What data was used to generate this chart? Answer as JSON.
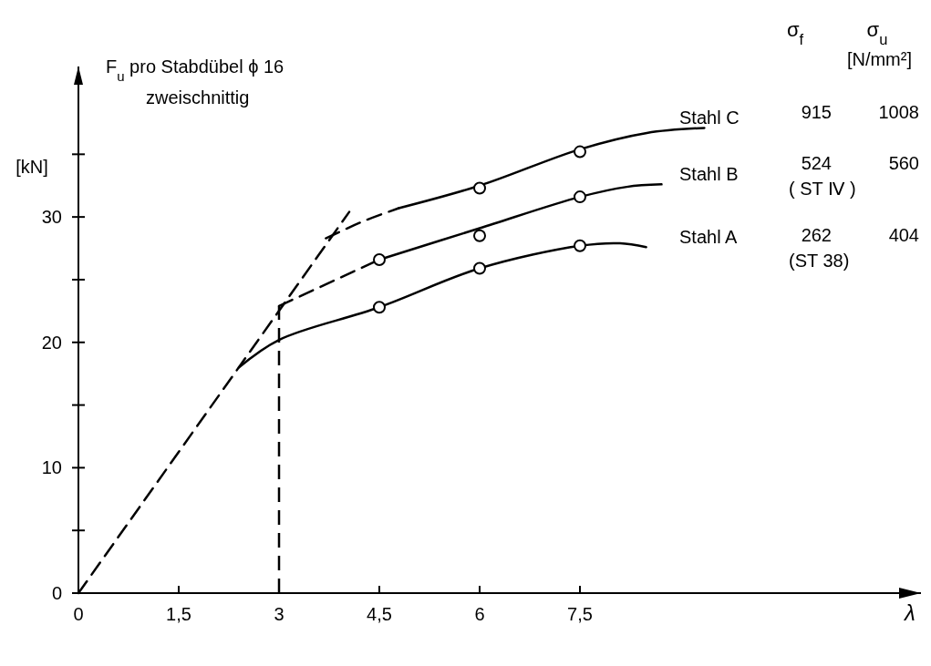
{
  "chart_data": {
    "type": "line",
    "title": "F$_{u}$ pro Stabdübel ϕ 16\nzweischnittig",
    "ylabel": "[kN]",
    "xlabel": "λ",
    "xlim": [
      0,
      12.6
    ],
    "ylim": [
      0,
      42
    ],
    "xticks": [
      0,
      {
        "value": 1.5,
        "label": "1,5"
      },
      3,
      {
        "value": 4.5,
        "label": "4,5"
      },
      6,
      {
        "value": 7.5,
        "label": "7,5"
      }
    ],
    "yticks": [
      0,
      {
        "value": 5,
        "label": null
      },
      10,
      {
        "value": 15,
        "label": null
      },
      20,
      {
        "value": 25,
        "label": null
      },
      30,
      {
        "value": 35,
        "label": null
      }
    ],
    "ref_lines": [
      {
        "axis": "x",
        "value": 3,
        "color": "#000000",
        "line_style": "dashed"
      }
    ],
    "annotations": [
      "σ$_{f}$",
      "σ$_{u}$",
      "[N/mm²]",
      "915",
      "1008",
      "524",
      "560",
      "( ST Ⅳ )",
      "262",
      "404",
      "(ST 38)"
    ],
    "series": [
      {
        "color": "#000000",
        "line_style": "dashed",
        "x": [
          0,
          4.05
        ],
        "values": [
          0,
          30.4
        ]
      },
      {
        "color": "#000000",
        "line_style": "dashed",
        "x": [
          3.7,
          4.28,
          4.79
        ],
        "values": [
          28.3,
          29.7,
          30.7
        ]
      },
      {
        "color": "#000000",
        "line_style": "dashed",
        "x": [
          3,
          4.5
        ],
        "values": [
          22.9,
          26.6
        ]
      },
      {
        "name": "Stahl C",
        "color": "#000000",
        "line_style": "solid",
        "x": [
          4.79,
          6,
          7.5,
          8.5,
          9.36
        ],
        "values": [
          30.7,
          32.5,
          35.4,
          36.7,
          37.1
        ]
      },
      {
        "name": "Stahl B",
        "color": "#000000",
        "line_style": "solid",
        "x": [
          4.5,
          6,
          7.5,
          8.2,
          8.72
        ],
        "values": [
          26.6,
          29.1,
          31.6,
          32.4,
          32.6
        ]
      },
      {
        "name": "Stahl A",
        "color": "#000000",
        "line_style": "solid",
        "x": [
          2.4,
          3,
          4.5,
          6,
          7.5,
          8.1,
          8.49
        ],
        "values": [
          18,
          20.2,
          22.8,
          25.9,
          27.7,
          27.9,
          27.6
        ]
      },
      {
        "type": "scatter",
        "color": "#000000",
        "marker": "circle",
        "x": [
          6,
          7.5
        ],
        "values": [
          32.3,
          35.2
        ]
      },
      {
        "type": "scatter",
        "color": "#000000",
        "marker": "circle",
        "x": [
          4.5,
          6,
          7.5
        ],
        "values": [
          26.6,
          28.5,
          31.6
        ]
      },
      {
        "type": "scatter",
        "color": "#000000",
        "marker": "circle",
        "x": [
          4.5,
          6,
          7.5
        ],
        "values": [
          22.8,
          25.9,
          27.7
        ]
      }
    ]
  }
}
